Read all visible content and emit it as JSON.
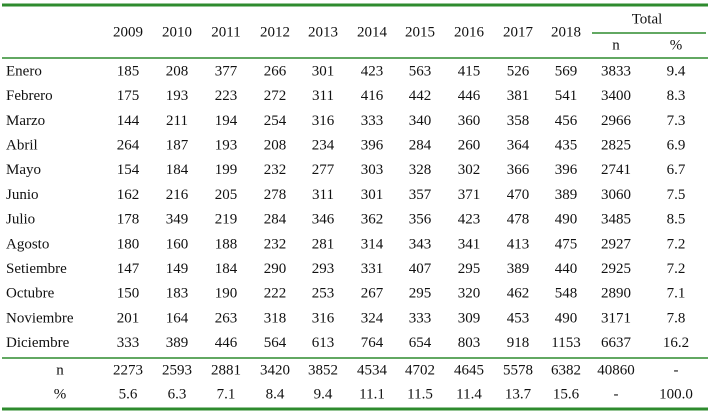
{
  "table": {
    "header": {
      "years": [
        "2009",
        "2010",
        "2011",
        "2012",
        "2013",
        "2014",
        "2015",
        "2016",
        "2017",
        "2018"
      ],
      "total": "Total",
      "total_sub": [
        "n",
        "%"
      ]
    },
    "rows": [
      {
        "label": "Enero",
        "cells": [
          "185",
          "208",
          "377",
          "266",
          "301",
          "423",
          "563",
          "415",
          "526",
          "569",
          "3833",
          "9.4"
        ]
      },
      {
        "label": "Febrero",
        "cells": [
          "175",
          "193",
          "223",
          "272",
          "311",
          "416",
          "442",
          "446",
          "381",
          "541",
          "3400",
          "8.3"
        ]
      },
      {
        "label": "Marzo",
        "cells": [
          "144",
          "211",
          "194",
          "254",
          "316",
          "333",
          "340",
          "360",
          "358",
          "456",
          "2966",
          "7.3"
        ]
      },
      {
        "label": "Abril",
        "cells": [
          "264",
          "187",
          "193",
          "208",
          "234",
          "396",
          "284",
          "260",
          "364",
          "435",
          "2825",
          "6.9"
        ]
      },
      {
        "label": "Mayo",
        "cells": [
          "154",
          "184",
          "199",
          "232",
          "277",
          "303",
          "328",
          "302",
          "366",
          "396",
          "2741",
          "6.7"
        ]
      },
      {
        "label": "Junio",
        "cells": [
          "162",
          "216",
          "205",
          "278",
          "311",
          "301",
          "357",
          "371",
          "470",
          "389",
          "3060",
          "7.5"
        ]
      },
      {
        "label": "Julio",
        "cells": [
          "178",
          "349",
          "219",
          "284",
          "346",
          "362",
          "356",
          "423",
          "478",
          "490",
          "3485",
          "8.5"
        ]
      },
      {
        "label": "Agosto",
        "cells": [
          "180",
          "160",
          "188",
          "232",
          "281",
          "314",
          "343",
          "341",
          "413",
          "475",
          "2927",
          "7.2"
        ]
      },
      {
        "label": "Setiembre",
        "cells": [
          "147",
          "149",
          "184",
          "290",
          "293",
          "331",
          "407",
          "295",
          "389",
          "440",
          "2925",
          "7.2"
        ]
      },
      {
        "label": "Octubre",
        "cells": [
          "150",
          "183",
          "190",
          "222",
          "253",
          "267",
          "295",
          "320",
          "462",
          "548",
          "2890",
          "7.1"
        ]
      },
      {
        "label": "Noviembre",
        "cells": [
          "201",
          "164",
          "263",
          "318",
          "316",
          "324",
          "333",
          "309",
          "453",
          "490",
          "3171",
          "7.8"
        ]
      },
      {
        "label": "Diciembre",
        "cells": [
          "333",
          "389",
          "446",
          "564",
          "613",
          "764",
          "654",
          "803",
          "918",
          "1153",
          "6637",
          "16.2"
        ]
      }
    ],
    "footer": [
      {
        "label": "n",
        "cells": [
          "2273",
          "2593",
          "2881",
          "3420",
          "3852",
          "4534",
          "4702",
          "4645",
          "5578",
          "6382",
          "40860",
          "-"
        ]
      },
      {
        "label": "%",
        "cells": [
          "5.6",
          "6.3",
          "7.1",
          "8.4",
          "9.4",
          "11.1",
          "11.5",
          "11.4",
          "13.7",
          "15.6",
          "-",
          "100.0"
        ]
      }
    ]
  }
}
